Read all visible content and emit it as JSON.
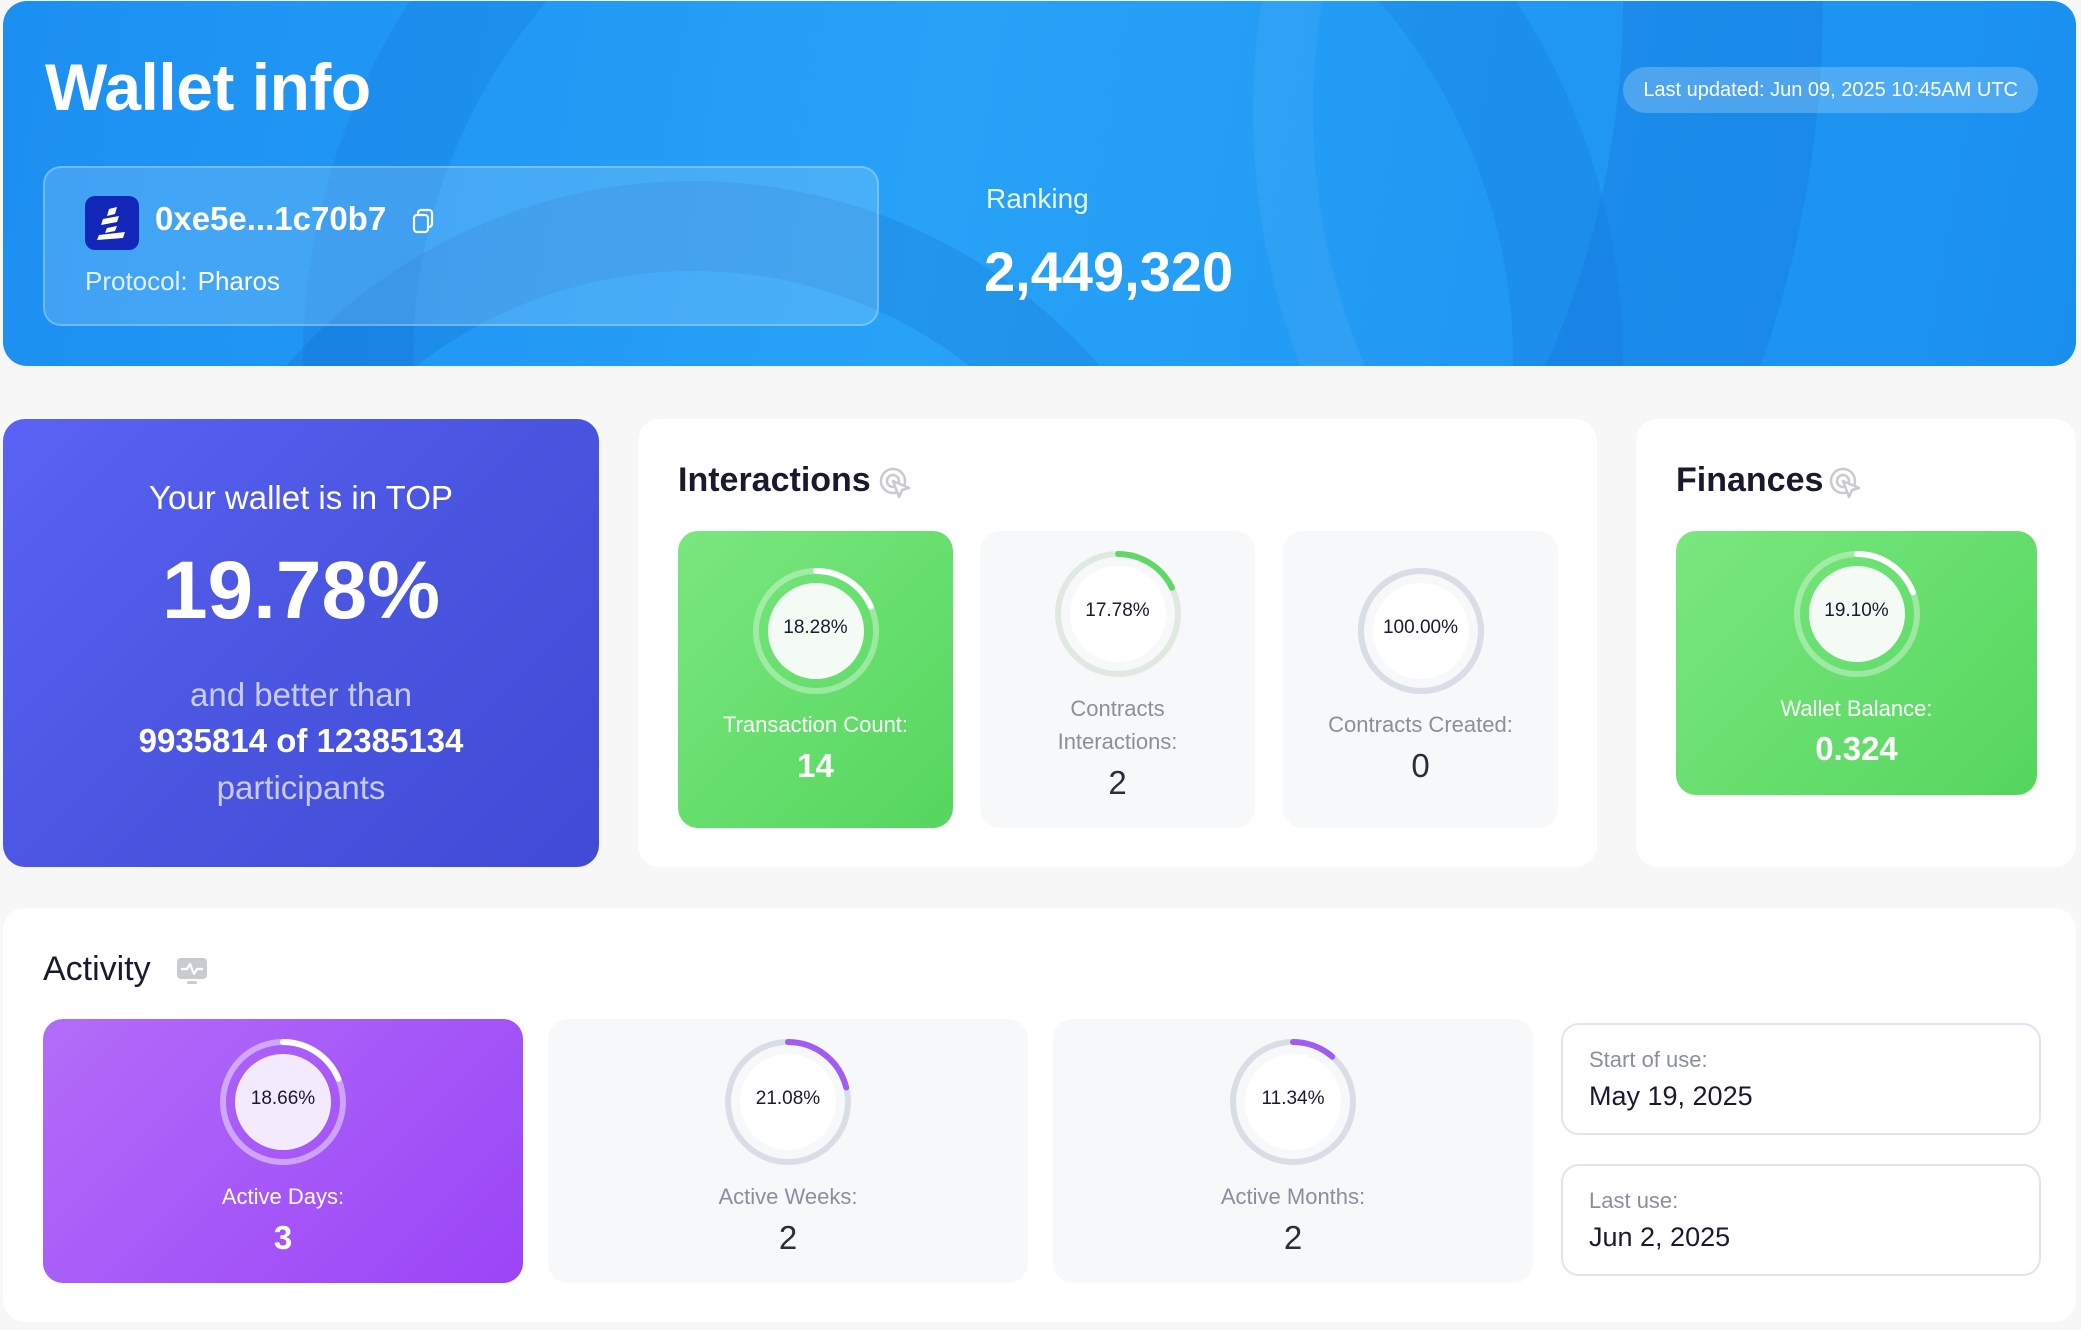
{
  "header": {
    "title": "Wallet info",
    "last_updated": "Last updated: Jun 09, 2025 10:45AM UTC",
    "wallet_address": "0xe5e...1c70b7",
    "protocol_label": "Protocol:",
    "protocol_value": "Pharos",
    "ranking_label": "Ranking",
    "ranking_value": "2,449,320"
  },
  "top_card": {
    "line1": "Your wallet is in TOP",
    "percent": "19.78%",
    "line3": "and better than",
    "line4": "9935814 of 12385134",
    "line5": "participants"
  },
  "interactions": {
    "title": "Interactions",
    "icon": "cursor-click-icon",
    "stats": [
      {
        "percent_label": "18.28%",
        "percent": 18.28,
        "label": "Transaction Count:",
        "value": "14"
      },
      {
        "percent_label": "17.78%",
        "percent": 17.78,
        "label_line1": "Contracts",
        "label_line2": "Interactions:",
        "value": "2"
      },
      {
        "percent_label": "100.00%",
        "percent": 100,
        "label": "Contracts Created:",
        "value": "0"
      }
    ]
  },
  "finances": {
    "title": "Finances",
    "icon": "cursor-click-icon",
    "stats": [
      {
        "percent_label": "19.10%",
        "percent": 19.1,
        "label": "Wallet Balance:",
        "value": "0.324"
      }
    ]
  },
  "activity": {
    "title": "Activity",
    "icon": "activity-monitor-icon",
    "stats": [
      {
        "percent_label": "18.66%",
        "percent": 18.66,
        "label": "Active Days:",
        "value": "3"
      },
      {
        "percent_label": "21.08%",
        "percent": 21.08,
        "label": "Active Weeks:",
        "value": "2"
      },
      {
        "percent_label": "11.34%",
        "percent": 11.34,
        "label": "Active Months:",
        "value": "2"
      }
    ],
    "start_label": "Start of use:",
    "start_value": "May 19, 2025",
    "last_label": "Last use:",
    "last_value": "Jun 2, 2025"
  },
  "colors": {
    "header_blue": "#1c8ff2",
    "top_indigo": "#4a55e0",
    "green": "#55d65e",
    "purple": "#9a45f7"
  }
}
